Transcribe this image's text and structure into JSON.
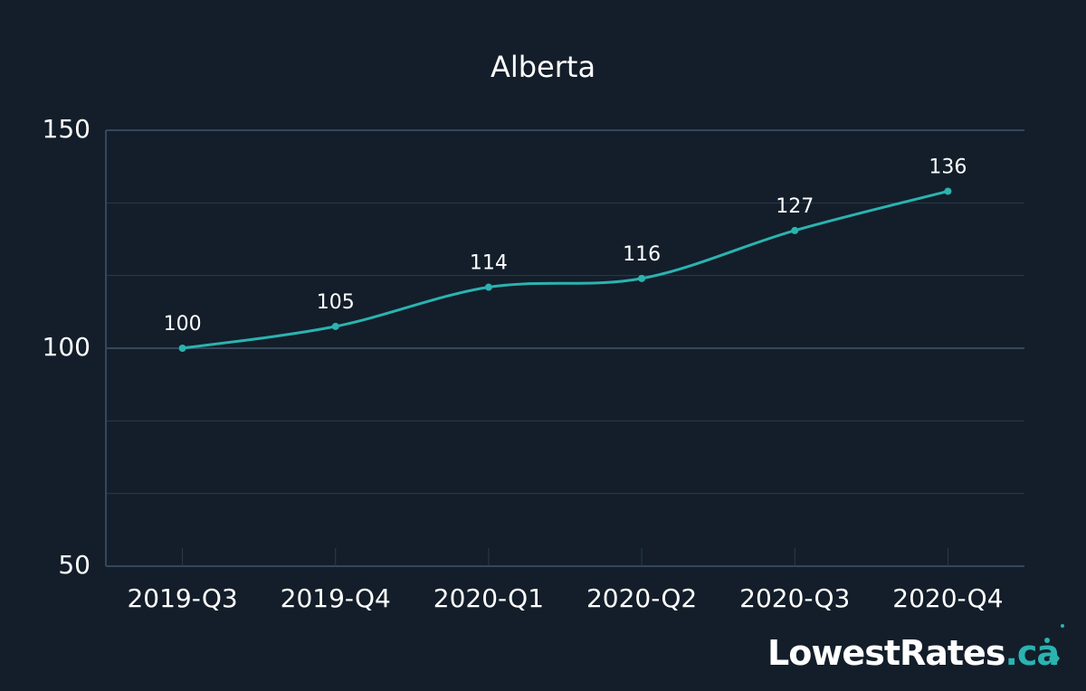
{
  "chart_data": {
    "type": "line",
    "title": "Alberta",
    "categories": [
      "2019-Q3",
      "2019-Q4",
      "2020-Q1",
      "2020-Q2",
      "2020-Q3",
      "2020-Q4"
    ],
    "series": [
      {
        "name": "Alberta",
        "color": "#2bb3b0",
        "values": [
          100,
          105,
          114,
          116,
          127,
          136
        ]
      }
    ],
    "ylim": [
      50,
      150
    ],
    "yticks": [
      50,
      100,
      150
    ],
    "minor_yticks": [
      66.67,
      83.33,
      116.67,
      133.33
    ],
    "grid": true,
    "smooth": true
  },
  "logo": {
    "name": "LowestRates",
    "suffix": ".ca"
  }
}
